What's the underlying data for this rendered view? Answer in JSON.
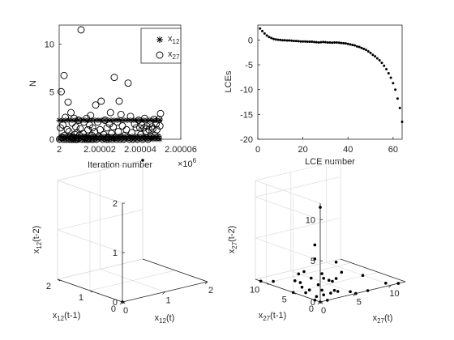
{
  "chart_data": [
    {
      "id": "iter",
      "type": "scatter",
      "title": "",
      "xlabel": "Iteration number",
      "ylabel": "N",
      "x_multiplier_label": "×10",
      "x_multiplier_exp": "6",
      "xlim": [
        2.0,
        2.00006
      ],
      "ylim": [
        0,
        12
      ],
      "xticks": [
        "2",
        "2.00002",
        "2.00004",
        "2.00006"
      ],
      "yticks": [
        "0",
        "5",
        "10"
      ],
      "legend_position": "top-right",
      "series": [
        {
          "name": "x",
          "name_sub": "12",
          "marker": "star",
          "x": [
            2.0,
            2.0000016,
            2.0000032,
            2.0000048,
            2.0000064,
            2.000008,
            2.0000096,
            2.0000112,
            2.0000128,
            2.0000144,
            2.000016,
            2.0000176,
            2.0000192,
            2.0000208,
            2.0000224,
            2.000024,
            2.0000256,
            2.0000272,
            2.0000288,
            2.0000304,
            2.000032,
            2.0000336,
            2.0000352,
            2.0000368,
            2.0000384,
            2.00004,
            2.0000416,
            2.0000432,
            2.0000448,
            2.0000464,
            2.000048,
            2.0000496,
            2.0,
            2.0000016,
            2.0000032,
            2.0000048,
            2.0000064,
            2.000008,
            2.0000096,
            2.0000112,
            2.0000128,
            2.0000144,
            2.000016,
            2.0000176,
            2.0000192,
            2.0000208,
            2.0000224,
            2.000024,
            2.0000256,
            2.0000272,
            2.0000288,
            2.0000304,
            2.000032,
            2.0000336,
            2.0000352,
            2.0000368,
            2.0000384,
            2.00004,
            2.0000416,
            2.0000432,
            2.0000448,
            2.0000464,
            2.000048,
            2.0000496,
            2.0000008,
            2.0000024,
            2.000004,
            2.0000056,
            2.0000072,
            2.0000088,
            2.0000104,
            2.000012,
            2.0000136,
            2.0000152,
            2.0000168,
            2.0000184,
            2.00002,
            2.0000216,
            2.0000232,
            2.0000248,
            2.0000264,
            2.000028,
            2.0000296,
            2.0000312,
            2.0000328,
            2.0000344,
            2.000036,
            2.0000376,
            2.0000392,
            2.0000408,
            2.0000424,
            2.000044,
            2.0000456,
            2.0000472,
            2.0000488
          ],
          "y": [
            2,
            2,
            2,
            2,
            2,
            2,
            2,
            2,
            2,
            2,
            2,
            2,
            2,
            2,
            2,
            2,
            2,
            2,
            2,
            2,
            2,
            2,
            2,
            2,
            2,
            2,
            2,
            2,
            2,
            2,
            2,
            2,
            0,
            0,
            0,
            0,
            0,
            0,
            0,
            0,
            0,
            0,
            0,
            0,
            0,
            0,
            0,
            0,
            0,
            0,
            0,
            0,
            0,
            0,
            0,
            0,
            0,
            0,
            0,
            0,
            0,
            0,
            0,
            0,
            0.3,
            0.3,
            0.3,
            0.3,
            0.3,
            0.3,
            0.3,
            0.3,
            0.3,
            0.3,
            0.3,
            0.3,
            0.3,
            0.3,
            0.3,
            0.3,
            0.3,
            0.3,
            0.3,
            0.3,
            0.3,
            0.3,
            0.3,
            0.3,
            0.3,
            0.3,
            0.3,
            0.3,
            0.3,
            0.3,
            0.3
          ]
        },
        {
          "name": "x",
          "name_sub": "27",
          "marker": "circle",
          "x": [
            2.0000002,
            2.0000006,
            2.000001,
            2.0000014,
            2.0000018,
            2.0000021,
            2.0000024,
            2.0000026,
            2.000003,
            2.0000035,
            2.000004,
            2.0000044,
            2.0000048,
            2.000005,
            2.0000054,
            2.0000058,
            2.0000061,
            2.0000064,
            2.0000066,
            2.000007,
            2.0000074,
            2.0000078,
            2.000008,
            2.0000082,
            2.0000085,
            2.0000088,
            2.0000092,
            2.0000096,
            2.00001,
            2.0000104,
            2.0000108,
            2.0000112,
            2.0000118,
            2.0000122,
            2.0000126,
            2.0000129,
            2.0000135,
            2.0000138,
            2.0000142,
            2.0000145,
            2.000015,
            2.0000155,
            2.0000158,
            2.0000162,
            2.0000165,
            2.000017,
            2.0000175,
            2.000018,
            2.0000185,
            2.000019,
            2.0000196,
            2.0000202,
            2.0000207,
            2.0000214,
            2.000022,
            2.0000226,
            2.0000232,
            2.0000236,
            2.000024,
            2.0000244,
            2.0000248,
            2.0000253,
            2.0000258,
            2.0000262,
            2.0000267,
            2.0000272,
            2.0000277,
            2.0000282,
            2.0000287,
            2.0000292,
            2.0000296,
            2.00003,
            2.0000305,
            2.0000312,
            2.0000318,
            2.0000324,
            2.0000332,
            2.000034,
            2.0000346,
            2.0000352,
            2.0000358,
            2.0000364,
            2.0000372,
            2.000038,
            2.0000386,
            2.0000392,
            2.0000398,
            2.0000403,
            2.0000408,
            2.0000412,
            2.0000418,
            2.0000422,
            2.0000428,
            2.0000432,
            2.0000438,
            2.0000443,
            2.0000448,
            2.0000452,
            2.0000458,
            2.0000462,
            2.0000468,
            2.0000472,
            2.0000478,
            2.0000482,
            2.0000488,
            2.0000492,
            2.0000497,
            2.00005
          ],
          "y": [
            0,
            1.2,
            5,
            0.2,
            1.5,
            0,
            6.7,
            0.4,
            2.3,
            0,
            1,
            3.9,
            0.8,
            0,
            0.3,
            2.8,
            0,
            1.7,
            0.2,
            0,
            2.2,
            0.5,
            0,
            1.3,
            0,
            0.7,
            0,
            2,
            0.4,
            1.1,
            11.5,
            0,
            0.6,
            1.8,
            0,
            0.2,
            2.2,
            0,
            1,
            0,
            1.5,
            2.5,
            0,
            0.4,
            1.2,
            0,
            0.8,
            3.6,
            0,
            1.8,
            0.3,
            1,
            4,
            0,
            0.5,
            2,
            0,
            1.2,
            0.2,
            0,
            1.6,
            2.8,
            0.6,
            0,
            1.3,
            6.5,
            0.2,
            0,
            1.8,
            0.8,
            4,
            0,
            2.6,
            1.4,
            0,
            0.4,
            1,
            5.9,
            0,
            2.4,
            0.7,
            0,
            1.6,
            1.2,
            0,
            2,
            1.2,
            0.5,
            1.5,
            0,
            1.2,
            2.2,
            0.8,
            1.4,
            0,
            1,
            1.6,
            0.3,
            1.3,
            1.1,
            2.1,
            0.4,
            1.6,
            1,
            0.2,
            2.1,
            1.4,
            2.7
          ]
        }
      ]
    },
    {
      "id": "lce",
      "type": "scatter",
      "title": "",
      "xlabel": "LCE number",
      "ylabel": "LCEs",
      "xlim": [
        0,
        64
      ],
      "ylim": [
        -20,
        3
      ],
      "xticks": [
        0,
        20,
        40,
        60
      ],
      "yticks": [
        0,
        -5,
        -10,
        -15,
        -20
      ],
      "series": [
        {
          "name": "",
          "marker": "dot",
          "x": [
            1,
            2,
            3,
            4,
            5,
            6,
            7,
            8,
            9,
            10,
            11,
            12,
            13,
            14,
            15,
            16,
            17,
            18,
            19,
            20,
            21,
            22,
            23,
            24,
            25,
            26,
            27,
            28,
            29,
            30,
            31,
            32,
            33,
            34,
            35,
            36,
            37,
            38,
            39,
            40,
            41,
            42,
            43,
            44,
            45,
            46,
            47,
            48,
            49,
            50,
            51,
            52,
            53,
            54,
            55,
            56,
            57,
            58,
            59,
            60,
            61,
            62,
            63,
            64
          ],
          "y": [
            2.3,
            1.8,
            1.3,
            0.9,
            0.6,
            0.4,
            0.2,
            0.1,
            0.05,
            0,
            -0.05,
            -0.05,
            -0.1,
            -0.1,
            -0.15,
            -0.2,
            -0.2,
            -0.25,
            -0.3,
            -0.3,
            -0.3,
            -0.35,
            -0.35,
            -0.35,
            -0.4,
            -0.45,
            -0.5,
            -0.45,
            -0.4,
            -0.45,
            -0.5,
            -0.5,
            -0.55,
            -0.5,
            -0.5,
            -0.55,
            -0.6,
            -0.65,
            -0.7,
            -0.8,
            -0.9,
            -1.0,
            -1.1,
            -1.3,
            -1.4,
            -1.6,
            -1.8,
            -2.0,
            -2.3,
            -2.6,
            -3.0,
            -3.3,
            -3.7,
            -4.1,
            -4.6,
            -5.2,
            -5.9,
            -6.7,
            -7.6,
            -8.7,
            -10.0,
            -11.8,
            -13.7,
            -16.5
          ]
        }
      ]
    },
    {
      "id": "emb12",
      "type": "scatter",
      "title": "",
      "xlabel": "x",
      "xlabel_sub": "12",
      "xlabel_suffix": "(t)",
      "ylabel": "x",
      "ylabel_sub": "12",
      "ylabel_suffix": "(t-1)",
      "zlabel": "x",
      "zlabel_sub": "12",
      "zlabel_suffix": "(t-2)",
      "xlim": [
        0,
        2
      ],
      "ylim": [
        0,
        2
      ],
      "zlim": [
        0,
        2
      ],
      "xticks": [
        0,
        1,
        2
      ],
      "yticks": [
        0,
        1,
        2
      ],
      "zticks": [
        0,
        1,
        2
      ],
      "grid": true,
      "points": [
        {
          "x": 0,
          "y": 0,
          "z": 0
        },
        {
          "x": 2,
          "y": 2,
          "z": 2
        }
      ]
    },
    {
      "id": "emb27",
      "type": "scatter",
      "title": "",
      "xlabel": "x",
      "xlabel_sub": "27",
      "xlabel_suffix": "(t)",
      "ylabel": "x",
      "ylabel_sub": "27",
      "ylabel_suffix": "(t-1)",
      "zlabel": "x",
      "zlabel_sub": "27",
      "zlabel_suffix": "(t-2)",
      "xlim": [
        0,
        12
      ],
      "ylim": [
        0,
        12
      ],
      "zlim": [
        0,
        12
      ],
      "xticks": [
        0,
        5,
        10
      ],
      "yticks": [
        0,
        5,
        10
      ],
      "zticks": [
        0,
        5,
        10
      ],
      "grid": true,
      "points": [
        {
          "x": 0,
          "y": 0,
          "z": 0
        },
        {
          "x": 0,
          "y": 1,
          "z": 0
        },
        {
          "x": 1,
          "y": 0,
          "z": 0
        },
        {
          "x": 1,
          "y": 1,
          "z": 1
        },
        {
          "x": 0,
          "y": 2,
          "z": 1
        },
        {
          "x": 2,
          "y": 0,
          "z": 1
        },
        {
          "x": 1,
          "y": 2,
          "z": 0
        },
        {
          "x": 2,
          "y": 1,
          "z": 2
        },
        {
          "x": 0,
          "y": 5,
          "z": 0
        },
        {
          "x": 5,
          "y": 0,
          "z": 0
        },
        {
          "x": 2,
          "y": 2,
          "z": 0
        },
        {
          "x": 0,
          "y": 11,
          "z": 0
        },
        {
          "x": 11,
          "y": 0,
          "z": 0
        },
        {
          "x": 1,
          "y": 3,
          "z": 2
        },
        {
          "x": 3,
          "y": 1,
          "z": 2
        },
        {
          "x": 0,
          "y": 0,
          "z": 11.5
        },
        {
          "x": 0,
          "y": 1,
          "z": 6.7
        },
        {
          "x": 6.7,
          "y": 0,
          "z": 0
        },
        {
          "x": 0,
          "y": 1,
          "z": 5
        },
        {
          "x": 1,
          "y": 5,
          "z": 1
        },
        {
          "x": 5,
          "y": 1,
          "z": 0
        },
        {
          "x": 0,
          "y": 4,
          "z": 2.5
        },
        {
          "x": 4,
          "y": 2,
          "z": 0
        },
        {
          "x": 1,
          "y": 4,
          "z": 0
        },
        {
          "x": 3,
          "y": 1,
          "z": 4
        },
        {
          "x": 1,
          "y": 6,
          "z": 1
        },
        {
          "x": 6,
          "y": 0,
          "z": 2
        },
        {
          "x": 2,
          "y": 3,
          "z": 1
        },
        {
          "x": 3,
          "y": 2,
          "z": 0
        },
        {
          "x": 0,
          "y": 3,
          "z": 3
        },
        {
          "x": 3,
          "y": 0,
          "z": 3
        },
        {
          "x": 1,
          "y": 1,
          "z": 3
        },
        {
          "x": 2,
          "y": 2,
          "z": 2
        },
        {
          "x": 10,
          "y": 1,
          "z": 0
        },
        {
          "x": 1,
          "y": 10,
          "z": 0
        },
        {
          "x": 4,
          "y": 3,
          "z": 1
        },
        {
          "x": 2,
          "y": 6,
          "z": 0
        }
      ]
    }
  ]
}
